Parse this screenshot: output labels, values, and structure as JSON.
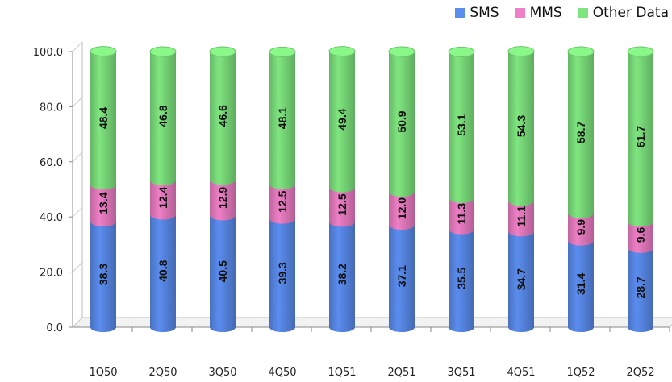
{
  "chart_data": {
    "type": "bar",
    "stacked": true,
    "categories": [
      "1Q50",
      "2Q50",
      "3Q50",
      "4Q50",
      "1Q51",
      "2Q51",
      "3Q51",
      "4Q51",
      "1Q52",
      "2Q52"
    ],
    "series": [
      {
        "name": "SMS",
        "color": "#5b8def",
        "values": [
          38.3,
          40.8,
          40.5,
          39.3,
          38.2,
          37.1,
          35.5,
          34.7,
          31.4,
          28.7
        ]
      },
      {
        "name": "MMS",
        "color": "#ef7fc6",
        "values": [
          13.4,
          12.4,
          12.9,
          12.5,
          12.5,
          12.0,
          11.3,
          11.1,
          9.9,
          9.6
        ]
      },
      {
        "name": "Other Data",
        "color": "#7fe67f",
        "values": [
          48.4,
          46.8,
          46.6,
          48.1,
          49.4,
          50.9,
          53.1,
          54.3,
          58.7,
          61.7
        ]
      }
    ],
    "yticks": [
      "0.0",
      "20.0",
      "40.0",
      "60.0",
      "80.0",
      "100.0"
    ],
    "ylim": [
      0,
      100
    ],
    "grid": false,
    "legend_position": "top-right"
  }
}
